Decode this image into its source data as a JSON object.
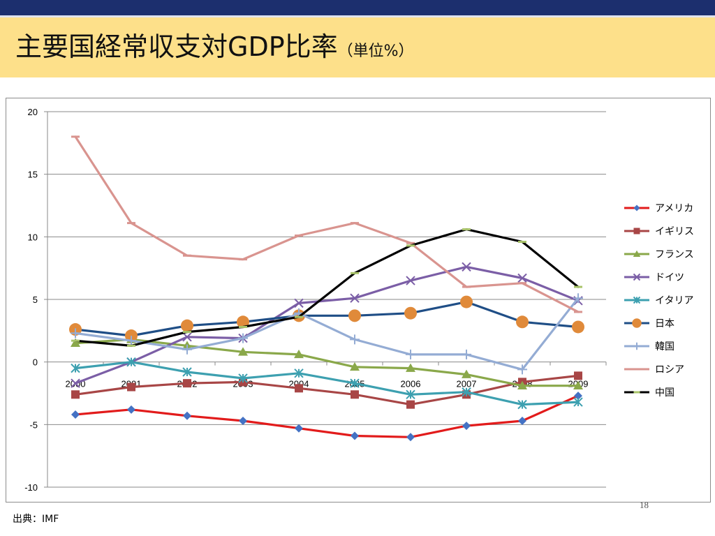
{
  "title": {
    "main": "主要国経常収支対GDP比率",
    "unit": "（単位%）"
  },
  "page_number": "18",
  "source": "出典：IMF",
  "chart_data": {
    "type": "line",
    "categories": [
      "2000",
      "2001",
      "2002",
      "2003",
      "2004",
      "2005",
      "2006",
      "2007",
      "2008",
      "2009"
    ],
    "ylim": [
      -10,
      20
    ],
    "yticks": [
      20,
      15,
      10,
      5,
      0,
      -5,
      -10
    ],
    "grid": true,
    "legend_position": "right",
    "series": [
      {
        "name": "アメリカ",
        "color": "#e21b1b",
        "marker": "diamond",
        "markerColor": "#4472c4",
        "values": [
          -4.2,
          -3.8,
          -4.3,
          -4.7,
          -5.3,
          -5.9,
          -6.0,
          -5.1,
          -4.7,
          -2.7
        ]
      },
      {
        "name": "イギリス",
        "color": "#a84646",
        "marker": "square",
        "markerColor": "#a84646",
        "values": [
          -2.6,
          -2.0,
          -1.7,
          -1.6,
          -2.1,
          -2.6,
          -3.4,
          -2.6,
          -1.6,
          -1.1
        ]
      },
      {
        "name": "フランス",
        "color": "#8aa84a",
        "marker": "triangle",
        "markerColor": "#8aa84a",
        "values": [
          1.5,
          1.8,
          1.3,
          0.8,
          0.6,
          -0.4,
          -0.5,
          -1.0,
          -1.9,
          -1.9
        ]
      },
      {
        "name": "ドイツ",
        "color": "#7b5ea6",
        "marker": "x",
        "markerColor": "#7b5ea6",
        "values": [
          -1.7,
          0.0,
          2.0,
          1.9,
          4.7,
          5.1,
          6.5,
          7.6,
          6.7,
          4.9
        ]
      },
      {
        "name": "イタリア",
        "color": "#3da0b0",
        "marker": "star",
        "markerColor": "#3da0b0",
        "values": [
          -0.5,
          0.0,
          -0.8,
          -1.3,
          -0.9,
          -1.7,
          -2.6,
          -2.4,
          -3.4,
          -3.2
        ]
      },
      {
        "name": "日本",
        "color": "#1f4e86",
        "marker": "circle",
        "markerColor": "#e08a3a",
        "values": [
          2.6,
          2.1,
          2.9,
          3.2,
          3.7,
          3.7,
          3.9,
          4.8,
          3.2,
          2.8
        ]
      },
      {
        "name": "韓国",
        "color": "#94acd4",
        "marker": "plus",
        "markerColor": "#94acd4",
        "values": [
          2.3,
          1.7,
          1.0,
          1.9,
          3.9,
          1.8,
          0.6,
          0.6,
          -0.6,
          5.1
        ]
      },
      {
        "name": "ロシア",
        "color": "#d9948f",
        "marker": "dash",
        "markerColor": "#d9948f",
        "values": [
          18.0,
          11.1,
          8.5,
          8.2,
          10.1,
          11.1,
          9.5,
          6.0,
          6.3,
          4.0
        ]
      },
      {
        "name": "中国",
        "color": "#000000",
        "marker": "dash",
        "markerColor": "#a9c46a",
        "values": [
          1.7,
          1.3,
          2.4,
          2.8,
          3.6,
          7.1,
          9.3,
          10.6,
          9.6,
          6.0
        ]
      }
    ]
  }
}
